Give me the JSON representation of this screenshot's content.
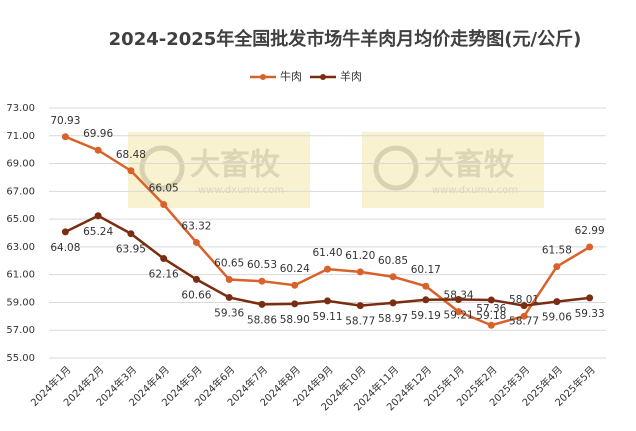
{
  "chart_data": {
    "type": "line",
    "title": "2024-2025年全国批发市场牛羊肉月均价走势图(元/公斤)",
    "categories": [
      "2024年1月",
      "2024年2月",
      "2024年3月",
      "2024年4月",
      "2024年5月",
      "2024年6月",
      "2024年7月",
      "2024年8月",
      "2024年9月",
      "2024年10月",
      "2024年11月",
      "2024年12月",
      "2025年1月",
      "2025年2月",
      "2025年3月",
      "2025年4月",
      "2025年5月"
    ],
    "series": [
      {
        "name": "牛肉",
        "color": "#d9622b",
        "values": [
          70.93,
          69.96,
          68.48,
          66.05,
          63.32,
          60.65,
          60.53,
          60.24,
          61.4,
          61.2,
          60.85,
          60.17,
          58.34,
          57.36,
          58.01,
          61.58,
          62.99
        ],
        "value_labels": [
          "70.93",
          "69.96",
          "68.48",
          "66.05",
          "63.32",
          "60.65",
          "60.53",
          "60.24",
          "61.40",
          "61.20",
          "60.85",
          "60.17",
          "58.34",
          "57.36",
          "58.01",
          "61.58",
          "62.99"
        ]
      },
      {
        "name": "羊肉",
        "color": "#7a2d10",
        "values": [
          64.08,
          65.24,
          63.95,
          62.16,
          60.66,
          59.36,
          58.86,
          58.9,
          59.11,
          58.77,
          58.97,
          59.19,
          59.21,
          59.18,
          58.77,
          59.06,
          59.33
        ],
        "value_labels": [
          "64.08",
          "65.24",
          "63.95",
          "62.16",
          "60.66",
          "59.36",
          "58.86",
          "58.90",
          "59.11",
          "58.77",
          "58.97",
          "59.19",
          "59.21",
          "59.18",
          "58.77",
          "59.06",
          "59.33"
        ]
      }
    ],
    "ylim": [
      55,
      73
    ],
    "yticks": [
      {
        "value": 55,
        "label": "55.00"
      },
      {
        "value": 57,
        "label": "57.00"
      },
      {
        "value": 59,
        "label": "59.00"
      },
      {
        "value": 61,
        "label": "61.00"
      },
      {
        "value": 63,
        "label": "63.00"
      },
      {
        "value": 65,
        "label": "65.00"
      },
      {
        "value": 67,
        "label": "67.00"
      },
      {
        "value": 69,
        "label": "69.00"
      },
      {
        "value": 71,
        "label": "71.00"
      },
      {
        "value": 73,
        "label": "73.00"
      }
    ],
    "grid": true,
    "legend": "top-left",
    "watermark": {
      "text": "大畜牧",
      "url": "www.dxumu.com"
    }
  }
}
